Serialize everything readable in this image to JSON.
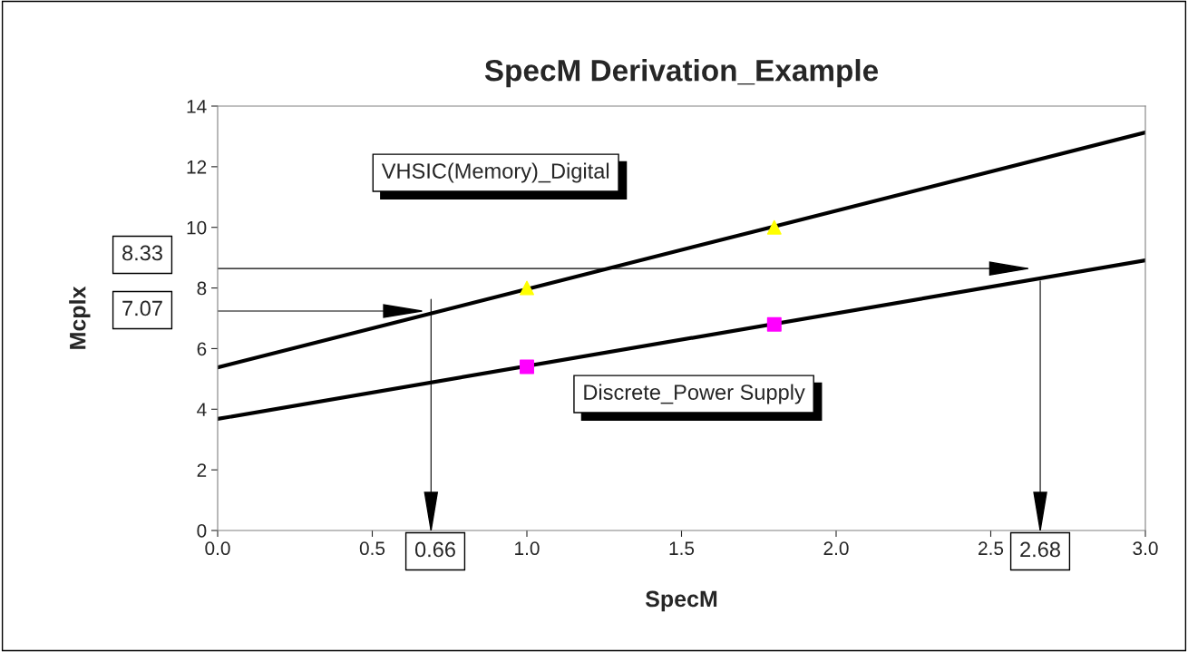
{
  "chart_data": {
    "type": "line",
    "title": "SpecM Derivation_Example",
    "xlabel": "SpecM",
    "ylabel": "Mcplx",
    "xlim": [
      0,
      3
    ],
    "ylim": [
      0,
      14
    ],
    "xticks": [
      {
        "value": 0,
        "label": "0.0"
      },
      {
        "value": 0.5,
        "label": "0.5"
      },
      {
        "value": 1,
        "label": "1.0"
      },
      {
        "value": 1.5,
        "label": "1.5"
      },
      {
        "value": 2,
        "label": "2.0"
      },
      {
        "value": 2.5,
        "label": "2.5"
      },
      {
        "value": 3,
        "label": "3.0"
      }
    ],
    "yticks": [
      0,
      2,
      4,
      6,
      8,
      10,
      12,
      14
    ],
    "grid": false,
    "legend": false,
    "series": [
      {
        "name": "VHSIC(Memory)_Digital",
        "color": "#000000",
        "x": [
          0,
          3
        ],
        "values": [
          5.38,
          13.13
        ],
        "marker": "none"
      },
      {
        "name": "Discrete_Power Supply",
        "color": "#000000",
        "x": [
          0,
          3
        ],
        "values": [
          3.68,
          8.91
        ],
        "marker": "none"
      },
      {
        "type": "scatter",
        "color": "#ffff00",
        "x": [
          1,
          1.8
        ],
        "values": [
          8.0,
          10.0
        ],
        "marker": "triangle"
      },
      {
        "type": "scatter",
        "color": "#ff00ff",
        "x": [
          1,
          1.8
        ],
        "values": [
          5.4,
          6.8
        ],
        "marker": "square"
      },
      {
        "color": "#000000",
        "x": [
          0,
          0.66
        ],
        "values": [
          7.24,
          7.24
        ],
        "marker": "none"
      },
      {
        "color": "#000000",
        "x": [
          0.69,
          0.69
        ],
        "values": [
          7.63,
          0
        ],
        "marker": "none"
      },
      {
        "color": "#000000",
        "x": [
          0,
          2.62
        ],
        "values": [
          8.64,
          8.64
        ],
        "marker": "none"
      },
      {
        "color": "#000000",
        "x": [
          2.66,
          2.66
        ],
        "values": [
          8.23,
          0
        ],
        "marker": "none"
      }
    ],
    "annotations": [
      "7.07",
      "0.66",
      "8.33",
      "2.68"
    ]
  }
}
